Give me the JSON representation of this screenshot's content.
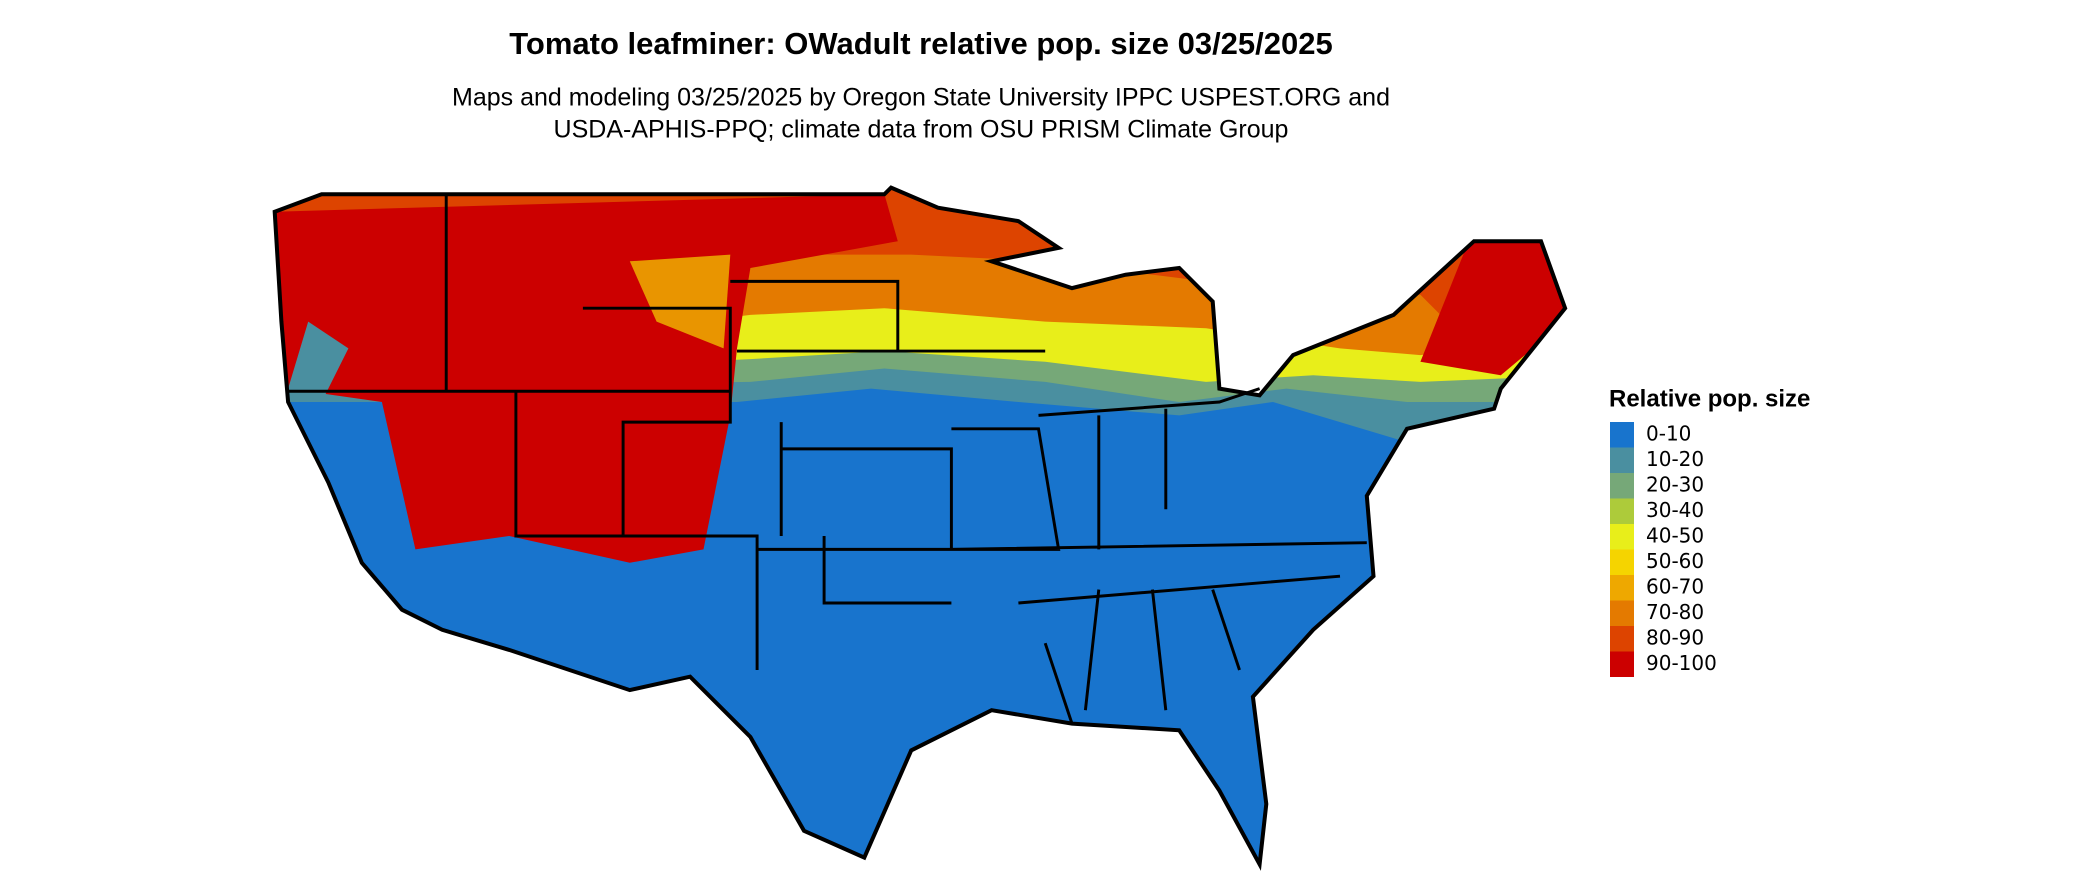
{
  "title": "Tomato leafminer: OWadult relative pop. size 03/25/2025",
  "subtitle": [
    "Maps and modeling 03/25/2025 by Oregon State University IPPC USPEST.ORG and",
    "USDA-APHIS-PPQ; climate data from OSU PRISM Climate Group"
  ],
  "legend": {
    "title": "Relative pop. size",
    "items": [
      {
        "label": "0-10",
        "color": "#1874cd"
      },
      {
        "label": "10-20",
        "color": "#4a8fa0"
      },
      {
        "label": "20-30",
        "color": "#76a878"
      },
      {
        "label": "30-40",
        "color": "#adcb3a"
      },
      {
        "label": "40-50",
        "color": "#e8ee1a"
      },
      {
        "label": "50-60",
        "color": "#f5d400"
      },
      {
        "label": "60-70",
        "color": "#eea800"
      },
      {
        "label": "70-80",
        "color": "#e47a00"
      },
      {
        "label": "80-90",
        "color": "#dd4400"
      },
      {
        "label": "90-100",
        "color": "#cc0000"
      }
    ]
  }
}
